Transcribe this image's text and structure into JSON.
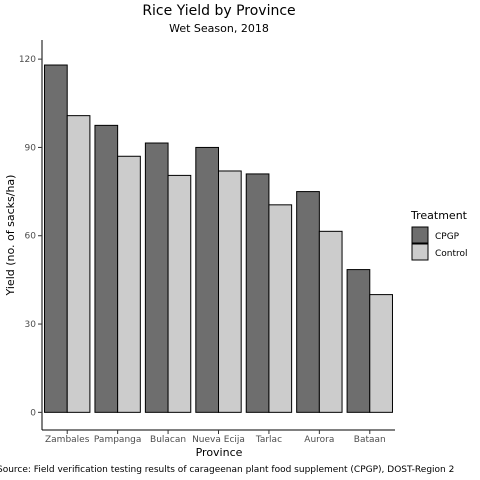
{
  "chart_data": {
    "type": "bar",
    "title": "Rice Yield by Province",
    "subtitle": "Wet Season, 2018",
    "xlabel": "Province",
    "ylabel": "Yield (no. of sacks/ha)",
    "categories": [
      "Zambales",
      "Pampanga",
      "Bulacan",
      "Nueva Ecija",
      "Tarlac",
      "Aurora",
      "Bataan"
    ],
    "series": [
      {
        "name": "CPGP",
        "values": [
          118,
          97.5,
          91.5,
          90,
          81,
          75,
          48.5
        ],
        "color": "#6e6e6e"
      },
      {
        "name": "Control",
        "values": [
          100.8,
          87,
          80.5,
          82,
          70.5,
          61.5,
          40
        ],
        "color": "#cccccc"
      }
    ],
    "ylim": [
      -6,
      126.5
    ],
    "yticks": [
      0,
      30,
      60,
      90,
      120
    ],
    "grid": false,
    "legend": {
      "title": "Treatment",
      "position": "right"
    },
    "caption": "Source: Field verification testing results of carageenan plant food supplement (CPGP), DOST-Region 2"
  }
}
